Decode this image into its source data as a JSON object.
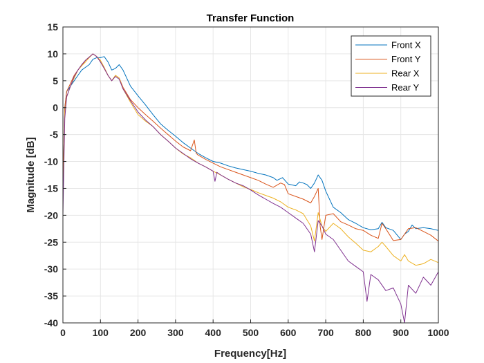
{
  "chart_data": {
    "type": "line",
    "title": "Transfer Function",
    "xlabel": "Frequency[Hz]",
    "ylabel": "Magnitude [dB]",
    "xlim": [
      0,
      1000
    ],
    "ylim": [
      -40,
      15
    ],
    "xticks": [
      0,
      100,
      200,
      300,
      400,
      500,
      600,
      700,
      800,
      900,
      1000
    ],
    "yticks": [
      -40,
      -35,
      -30,
      -25,
      -20,
      -15,
      -10,
      -5,
      0,
      5,
      10,
      15
    ],
    "grid": true,
    "legend_position": "top-right",
    "series": [
      {
        "name": "Front X",
        "color": "#0072BD",
        "points": [
          [
            0,
            -15
          ],
          [
            5,
            0
          ],
          [
            10,
            3
          ],
          [
            20,
            4
          ],
          [
            30,
            5
          ],
          [
            40,
            6
          ],
          [
            50,
            7
          ],
          [
            60,
            7.5
          ],
          [
            70,
            8
          ],
          [
            80,
            9
          ],
          [
            90,
            9.3
          ],
          [
            100,
            9.3
          ],
          [
            110,
            9.5
          ],
          [
            120,
            8.5
          ],
          [
            130,
            7
          ],
          [
            140,
            7.3
          ],
          [
            150,
            8
          ],
          [
            160,
            7
          ],
          [
            170,
            5.5
          ],
          [
            180,
            4
          ],
          [
            200,
            2.2
          ],
          [
            220,
            0.5
          ],
          [
            240,
            -1.3
          ],
          [
            260,
            -3
          ],
          [
            280,
            -4.2
          ],
          [
            300,
            -5.3
          ],
          [
            320,
            -6.5
          ],
          [
            340,
            -7.5
          ],
          [
            360,
            -8.5
          ],
          [
            380,
            -9.3
          ],
          [
            400,
            -10
          ],
          [
            420,
            -10.3
          ],
          [
            440,
            -10.8
          ],
          [
            460,
            -11.2
          ],
          [
            480,
            -11.5
          ],
          [
            500,
            -11.8
          ],
          [
            520,
            -12.2
          ],
          [
            540,
            -12.5
          ],
          [
            560,
            -13
          ],
          [
            570,
            -13.5
          ],
          [
            585,
            -13
          ],
          [
            600,
            -14.2
          ],
          [
            620,
            -14.5
          ],
          [
            630,
            -13.8
          ],
          [
            640,
            -14
          ],
          [
            650,
            -14.3
          ],
          [
            660,
            -15
          ],
          [
            670,
            -14
          ],
          [
            680,
            -12.5
          ],
          [
            690,
            -13.5
          ],
          [
            700,
            -15.5
          ],
          [
            720,
            -18.5
          ],
          [
            740,
            -19.5
          ],
          [
            760,
            -20.8
          ],
          [
            780,
            -21.5
          ],
          [
            800,
            -22.3
          ],
          [
            820,
            -22.7
          ],
          [
            840,
            -22.5
          ],
          [
            850,
            -21.3
          ],
          [
            860,
            -22.3
          ],
          [
            880,
            -22.8
          ],
          [
            900,
            -24.5
          ],
          [
            910,
            -23.5
          ],
          [
            920,
            -23
          ],
          [
            930,
            -21.8
          ],
          [
            940,
            -22.5
          ],
          [
            960,
            -22.3
          ],
          [
            980,
            -22.5
          ],
          [
            1000,
            -22.8
          ]
        ]
      },
      {
        "name": "Front Y",
        "color": "#D95319",
        "points": [
          [
            0,
            -15
          ],
          [
            5,
            0
          ],
          [
            10,
            3
          ],
          [
            20,
            4.5
          ],
          [
            30,
            6
          ],
          [
            40,
            7
          ],
          [
            50,
            7.8
          ],
          [
            60,
            8.8
          ],
          [
            70,
            9.4
          ],
          [
            80,
            10
          ],
          [
            90,
            9.5
          ],
          [
            100,
            8.5
          ],
          [
            110,
            7.3
          ],
          [
            120,
            6
          ],
          [
            130,
            5
          ],
          [
            140,
            6
          ],
          [
            150,
            5.5
          ],
          [
            160,
            3.8
          ],
          [
            180,
            1.5
          ],
          [
            200,
            0
          ],
          [
            220,
            -1.3
          ],
          [
            240,
            -2.5
          ],
          [
            260,
            -3.8
          ],
          [
            280,
            -5
          ],
          [
            300,
            -6.2
          ],
          [
            320,
            -7.3
          ],
          [
            340,
            -8
          ],
          [
            350,
            -6
          ],
          [
            355,
            -8.5
          ],
          [
            360,
            -8.8
          ],
          [
            380,
            -9.6
          ],
          [
            400,
            -10.3
          ],
          [
            420,
            -11
          ],
          [
            440,
            -11.5
          ],
          [
            460,
            -12
          ],
          [
            480,
            -12.5
          ],
          [
            500,
            -13
          ],
          [
            520,
            -13.5
          ],
          [
            540,
            -14.2
          ],
          [
            560,
            -14.8
          ],
          [
            580,
            -14
          ],
          [
            590,
            -14.3
          ],
          [
            600,
            -16
          ],
          [
            620,
            -16.5
          ],
          [
            640,
            -17
          ],
          [
            660,
            -17.7
          ],
          [
            670,
            -16.5
          ],
          [
            680,
            -15
          ],
          [
            685,
            -22
          ],
          [
            690,
            -24.5
          ],
          [
            700,
            -20
          ],
          [
            720,
            -19.7
          ],
          [
            740,
            -21.2
          ],
          [
            760,
            -21.8
          ],
          [
            780,
            -22.5
          ],
          [
            800,
            -22.8
          ],
          [
            820,
            -23.7
          ],
          [
            840,
            -24.3
          ],
          [
            850,
            -21.5
          ],
          [
            860,
            -22.5
          ],
          [
            880,
            -24.7
          ],
          [
            900,
            -24.5
          ],
          [
            920,
            -22.5
          ],
          [
            940,
            -22.3
          ],
          [
            960,
            -23
          ],
          [
            980,
            -23.7
          ],
          [
            1000,
            -24.8
          ]
        ]
      },
      {
        "name": "Rear X",
        "color": "#EDB120",
        "points": [
          [
            0,
            -16
          ],
          [
            5,
            -1
          ],
          [
            10,
            2
          ],
          [
            20,
            4
          ],
          [
            30,
            5.5
          ],
          [
            40,
            7
          ],
          [
            50,
            7.8
          ],
          [
            60,
            8.5
          ],
          [
            70,
            9.3
          ],
          [
            80,
            10
          ],
          [
            90,
            9.5
          ],
          [
            100,
            8.8
          ],
          [
            110,
            7.5
          ],
          [
            120,
            6
          ],
          [
            130,
            5
          ],
          [
            140,
            6
          ],
          [
            150,
            5.5
          ],
          [
            160,
            3.5
          ],
          [
            180,
            1
          ],
          [
            200,
            -1.3
          ],
          [
            220,
            -2.5
          ],
          [
            240,
            -3.5
          ],
          [
            260,
            -5
          ],
          [
            280,
            -6.2
          ],
          [
            300,
            -7.5
          ],
          [
            320,
            -8.6
          ],
          [
            340,
            -9.3
          ],
          [
            360,
            -10.3
          ],
          [
            380,
            -11
          ],
          [
            400,
            -11.8
          ],
          [
            420,
            -12.5
          ],
          [
            440,
            -13.3
          ],
          [
            460,
            -14
          ],
          [
            480,
            -14.7
          ],
          [
            500,
            -15.2
          ],
          [
            520,
            -15.8
          ],
          [
            540,
            -16.3
          ],
          [
            560,
            -16.8
          ],
          [
            580,
            -17.5
          ],
          [
            600,
            -18.5
          ],
          [
            620,
            -19
          ],
          [
            640,
            -19.7
          ],
          [
            660,
            -22
          ],
          [
            670,
            -24.8
          ],
          [
            680,
            -19.5
          ],
          [
            690,
            -22
          ],
          [
            700,
            -23
          ],
          [
            720,
            -21.5
          ],
          [
            740,
            -22.5
          ],
          [
            760,
            -24
          ],
          [
            780,
            -25.2
          ],
          [
            800,
            -26.5
          ],
          [
            820,
            -26.8
          ],
          [
            840,
            -25.8
          ],
          [
            850,
            -25
          ],
          [
            860,
            -25.8
          ],
          [
            880,
            -27.5
          ],
          [
            900,
            -28.5
          ],
          [
            910,
            -27.3
          ],
          [
            920,
            -28.5
          ],
          [
            940,
            -29.3
          ],
          [
            960,
            -29
          ],
          [
            980,
            -28.2
          ],
          [
            1000,
            -28.8
          ]
        ]
      },
      {
        "name": "Rear Y",
        "color": "#7E2F8E",
        "points": [
          [
            0,
            -20
          ],
          [
            5,
            -2
          ],
          [
            10,
            2
          ],
          [
            20,
            4
          ],
          [
            30,
            5.8
          ],
          [
            40,
            7
          ],
          [
            50,
            8
          ],
          [
            60,
            8.8
          ],
          [
            70,
            9.4
          ],
          [
            80,
            10
          ],
          [
            90,
            9.5
          ],
          [
            100,
            8.5
          ],
          [
            110,
            7.3
          ],
          [
            120,
            6
          ],
          [
            130,
            5
          ],
          [
            140,
            5.8
          ],
          [
            150,
            5.3
          ],
          [
            160,
            3.5
          ],
          [
            180,
            1.3
          ],
          [
            200,
            -0.8
          ],
          [
            220,
            -2.3
          ],
          [
            240,
            -3.5
          ],
          [
            260,
            -5
          ],
          [
            280,
            -6.2
          ],
          [
            300,
            -7.5
          ],
          [
            320,
            -8.5
          ],
          [
            340,
            -9.5
          ],
          [
            360,
            -10.3
          ],
          [
            380,
            -11
          ],
          [
            400,
            -11.8
          ],
          [
            405,
            -13.7
          ],
          [
            410,
            -12
          ],
          [
            420,
            -12.5
          ],
          [
            440,
            -13.3
          ],
          [
            460,
            -14
          ],
          [
            480,
            -14.5
          ],
          [
            500,
            -15.3
          ],
          [
            520,
            -16.2
          ],
          [
            540,
            -17
          ],
          [
            560,
            -17.8
          ],
          [
            580,
            -18.5
          ],
          [
            600,
            -19.5
          ],
          [
            620,
            -20.5
          ],
          [
            640,
            -21.5
          ],
          [
            660,
            -23.5
          ],
          [
            670,
            -26.8
          ],
          [
            680,
            -21
          ],
          [
            690,
            -22
          ],
          [
            700,
            -23.5
          ],
          [
            720,
            -24.5
          ],
          [
            740,
            -26.5
          ],
          [
            760,
            -28.5
          ],
          [
            780,
            -29.5
          ],
          [
            800,
            -30.5
          ],
          [
            810,
            -36
          ],
          [
            820,
            -31
          ],
          [
            840,
            -32
          ],
          [
            860,
            -34
          ],
          [
            880,
            -33.5
          ],
          [
            900,
            -36.5
          ],
          [
            910,
            -40
          ],
          [
            920,
            -33
          ],
          [
            940,
            -34.5
          ],
          [
            960,
            -31.5
          ],
          [
            980,
            -33
          ],
          [
            1000,
            -30.5
          ]
        ]
      }
    ]
  }
}
